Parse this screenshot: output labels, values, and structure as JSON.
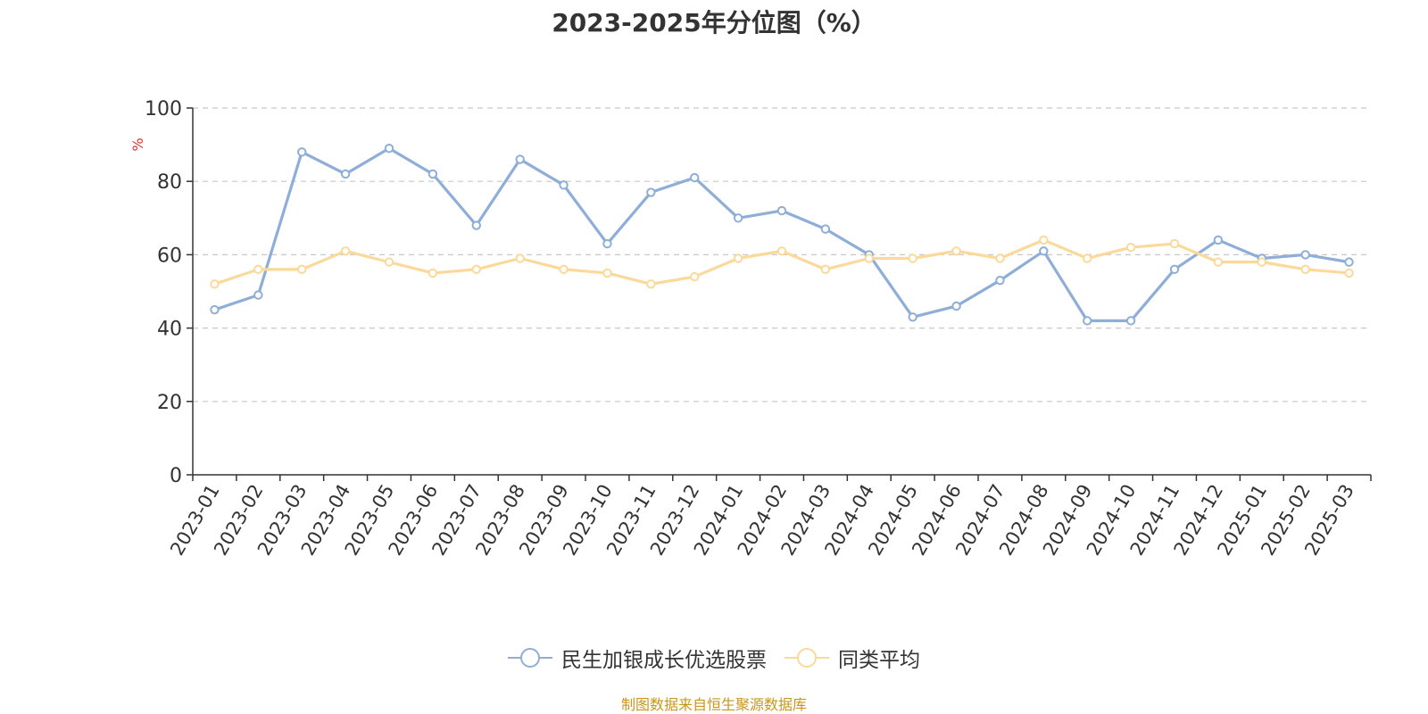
{
  "chart_data": {
    "type": "line",
    "title": "2023-2025年分位图（%）",
    "ylabel": "%",
    "ylim": [
      0,
      100
    ],
    "yticks": [
      0,
      20,
      40,
      60,
      80,
      100
    ],
    "grid": true,
    "legend_position": "bottom",
    "categories": [
      "2023-01",
      "2023-02",
      "2023-03",
      "2023-04",
      "2023-05",
      "2023-06",
      "2023-07",
      "2023-08",
      "2023-09",
      "2023-10",
      "2023-11",
      "2023-12",
      "2024-01",
      "2024-02",
      "2024-03",
      "2024-04",
      "2024-05",
      "2024-06",
      "2024-07",
      "2024-08",
      "2024-09",
      "2024-10",
      "2024-11",
      "2024-12",
      "2025-01",
      "2025-02",
      "2025-03"
    ],
    "series": [
      {
        "name": "民生加银成长优选股票",
        "color": "#8eaed8",
        "values": [
          45,
          49,
          88,
          82,
          89,
          82,
          68,
          86,
          79,
          63,
          77,
          81,
          70,
          72,
          67,
          60,
          43,
          46,
          53,
          61,
          42,
          42,
          56,
          64,
          59,
          60,
          58
        ]
      },
      {
        "name": "同类平均",
        "color": "#fbd99a",
        "values": [
          52,
          56,
          56,
          61,
          58,
          55,
          56,
          59,
          56,
          55,
          52,
          54,
          59,
          61,
          56,
          59,
          59,
          61,
          59,
          64,
          59,
          62,
          63,
          58,
          58,
          56,
          55
        ]
      }
    ]
  },
  "source_text": "制图数据来自恒生聚源数据库"
}
